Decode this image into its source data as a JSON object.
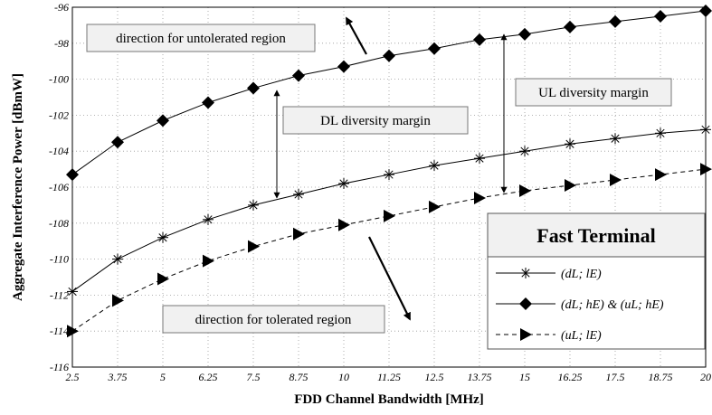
{
  "chart_data": {
    "type": "line",
    "xlabel": "FDD Channel Bandwidth [MHz]",
    "ylabel": "Aggregate Interference Power [dBmW]",
    "x": [
      2.5,
      3.75,
      5,
      6.25,
      7.5,
      8.75,
      10,
      11.25,
      12.5,
      13.75,
      15,
      16.25,
      17.5,
      18.75,
      20
    ],
    "x_tick_labels": [
      "2.5",
      "3.75",
      "5",
      "6.25",
      "7.5",
      "8.75",
      "10",
      "11.25",
      "12.5",
      "13.75",
      "15",
      "16.25",
      "17.5",
      "18.75",
      "20"
    ],
    "ylim": [
      -116,
      -96
    ],
    "y_ticks": [
      -116,
      -114,
      -112,
      -110,
      -108,
      -106,
      -104,
      -102,
      -100,
      -98,
      -96
    ],
    "y_tick_labels": [
      "-116",
      "-114",
      "-112",
      "-110",
      "-108",
      "-106",
      "-104",
      "-102",
      "-100",
      "-98",
      "-96"
    ],
    "grid": true,
    "legend": {
      "title": "Fast Terminal",
      "position": "bottom-right",
      "entries": [
        "(dL; lE)",
        "(dL; hE) & (uL; hE)",
        "(uL; lE)"
      ]
    },
    "series": [
      {
        "name": "(dL; lE)",
        "marker": "asterisk",
        "line_style": "solid",
        "values": [
          -111.8,
          -110.0,
          -108.8,
          -107.8,
          -107.0,
          -106.4,
          -105.8,
          -105.3,
          -104.8,
          -104.4,
          -104.0,
          -103.6,
          -103.3,
          -103.0,
          -102.8
        ]
      },
      {
        "name": "(dL; hE) & (uL; hE)",
        "marker": "diamond",
        "line_style": "solid",
        "values": [
          -105.3,
          -103.5,
          -102.3,
          -101.3,
          -100.5,
          -99.8,
          -99.3,
          -98.7,
          -98.3,
          -97.8,
          -97.5,
          -97.1,
          -96.8,
          -96.5,
          -96.2
        ]
      },
      {
        "name": "(uL; lE)",
        "marker": "triangle-right",
        "line_style": "dashed",
        "values": [
          -114.0,
          -112.3,
          -111.1,
          -110.1,
          -109.3,
          -108.6,
          -108.1,
          -107.6,
          -107.1,
          -106.6,
          -106.2,
          -105.9,
          -105.6,
          -105.3,
          -105.0
        ]
      }
    ],
    "annotations": [
      {
        "id": "untolerated",
        "text": "direction for untolerated region"
      },
      {
        "id": "dl_margin",
        "text": "DL diversity margin"
      },
      {
        "id": "ul_margin",
        "text": "UL diversity margin"
      },
      {
        "id": "tolerated",
        "text": "direction for tolerated region"
      }
    ]
  }
}
